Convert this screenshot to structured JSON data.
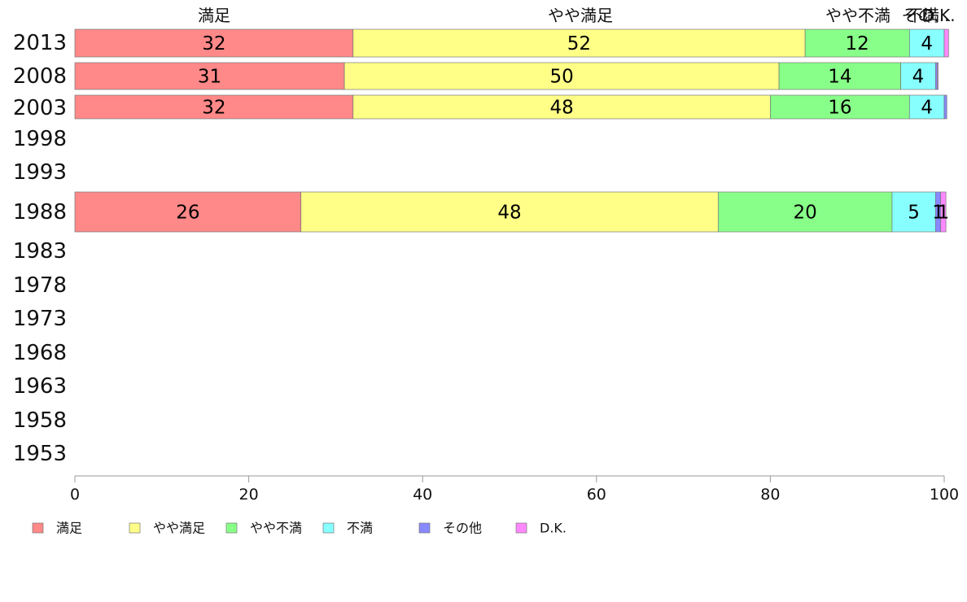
{
  "chart_data": {
    "type": "bar",
    "orientation": "horizontal",
    "stacked": true,
    "categories": [
      "2013",
      "2008",
      "2003",
      "1998",
      "1993",
      "1988",
      "1983",
      "1978",
      "1973",
      "1968",
      "1963",
      "1958",
      "1953"
    ],
    "series": [
      {
        "name": "満足",
        "color": "#ff8888",
        "values": [
          32,
          31,
          32,
          null,
          null,
          26,
          null,
          null,
          null,
          null,
          null,
          null,
          null
        ],
        "labels": [
          "32",
          "31",
          "32",
          "",
          "",
          "26",
          "",
          "",
          "",
          "",
          "",
          "",
          ""
        ]
      },
      {
        "name": "やや満足",
        "color": "#ffff88",
        "values": [
          52,
          50,
          48,
          null,
          null,
          48,
          null,
          null,
          null,
          null,
          null,
          null,
          null
        ],
        "labels": [
          "52",
          "50",
          "48",
          "",
          "",
          "48",
          "",
          "",
          "",
          "",
          "",
          "",
          ""
        ]
      },
      {
        "name": "やや不満",
        "color": "#88ff88",
        "values": [
          12,
          14,
          16,
          null,
          null,
          20,
          null,
          null,
          null,
          null,
          null,
          null,
          null
        ],
        "labels": [
          "12",
          "14",
          "16",
          "",
          "",
          "20",
          "",
          "",
          "",
          "",
          "",
          "",
          ""
        ]
      },
      {
        "name": "不満",
        "color": "#88ffff",
        "values": [
          4,
          4,
          4,
          null,
          null,
          5,
          null,
          null,
          null,
          null,
          null,
          null,
          null
        ],
        "labels": [
          "4",
          "4",
          "4",
          "",
          "",
          "5",
          "",
          "",
          "",
          "",
          "",
          "",
          ""
        ]
      },
      {
        "name": "その他",
        "color": "#8888ff",
        "values": [
          0,
          0.2,
          0.3,
          null,
          null,
          0.6,
          null,
          null,
          null,
          null,
          null,
          null,
          null
        ],
        "labels": [
          "",
          "",
          "",
          "",
          "",
          "1",
          "",
          "",
          "",
          "",
          "",
          "",
          ""
        ]
      },
      {
        "name": "D.K.",
        "color": "#ff88ff",
        "values": [
          0.5,
          0.1,
          0,
          null,
          null,
          0.6,
          null,
          null,
          null,
          null,
          null,
          null,
          null
        ],
        "labels": [
          "",
          "",
          "",
          "",
          "",
          "1",
          "",
          "",
          "",
          "",
          "",
          "",
          ""
        ]
      }
    ],
    "top_labels": [
      "満足",
      "やや満足",
      "やや不満",
      "不満",
      "その...",
      "D.K."
    ],
    "xlim": [
      0,
      100
    ],
    "xticks": [
      0,
      20,
      40,
      60,
      80,
      100
    ],
    "grid": false,
    "legend_position": "bottom"
  }
}
